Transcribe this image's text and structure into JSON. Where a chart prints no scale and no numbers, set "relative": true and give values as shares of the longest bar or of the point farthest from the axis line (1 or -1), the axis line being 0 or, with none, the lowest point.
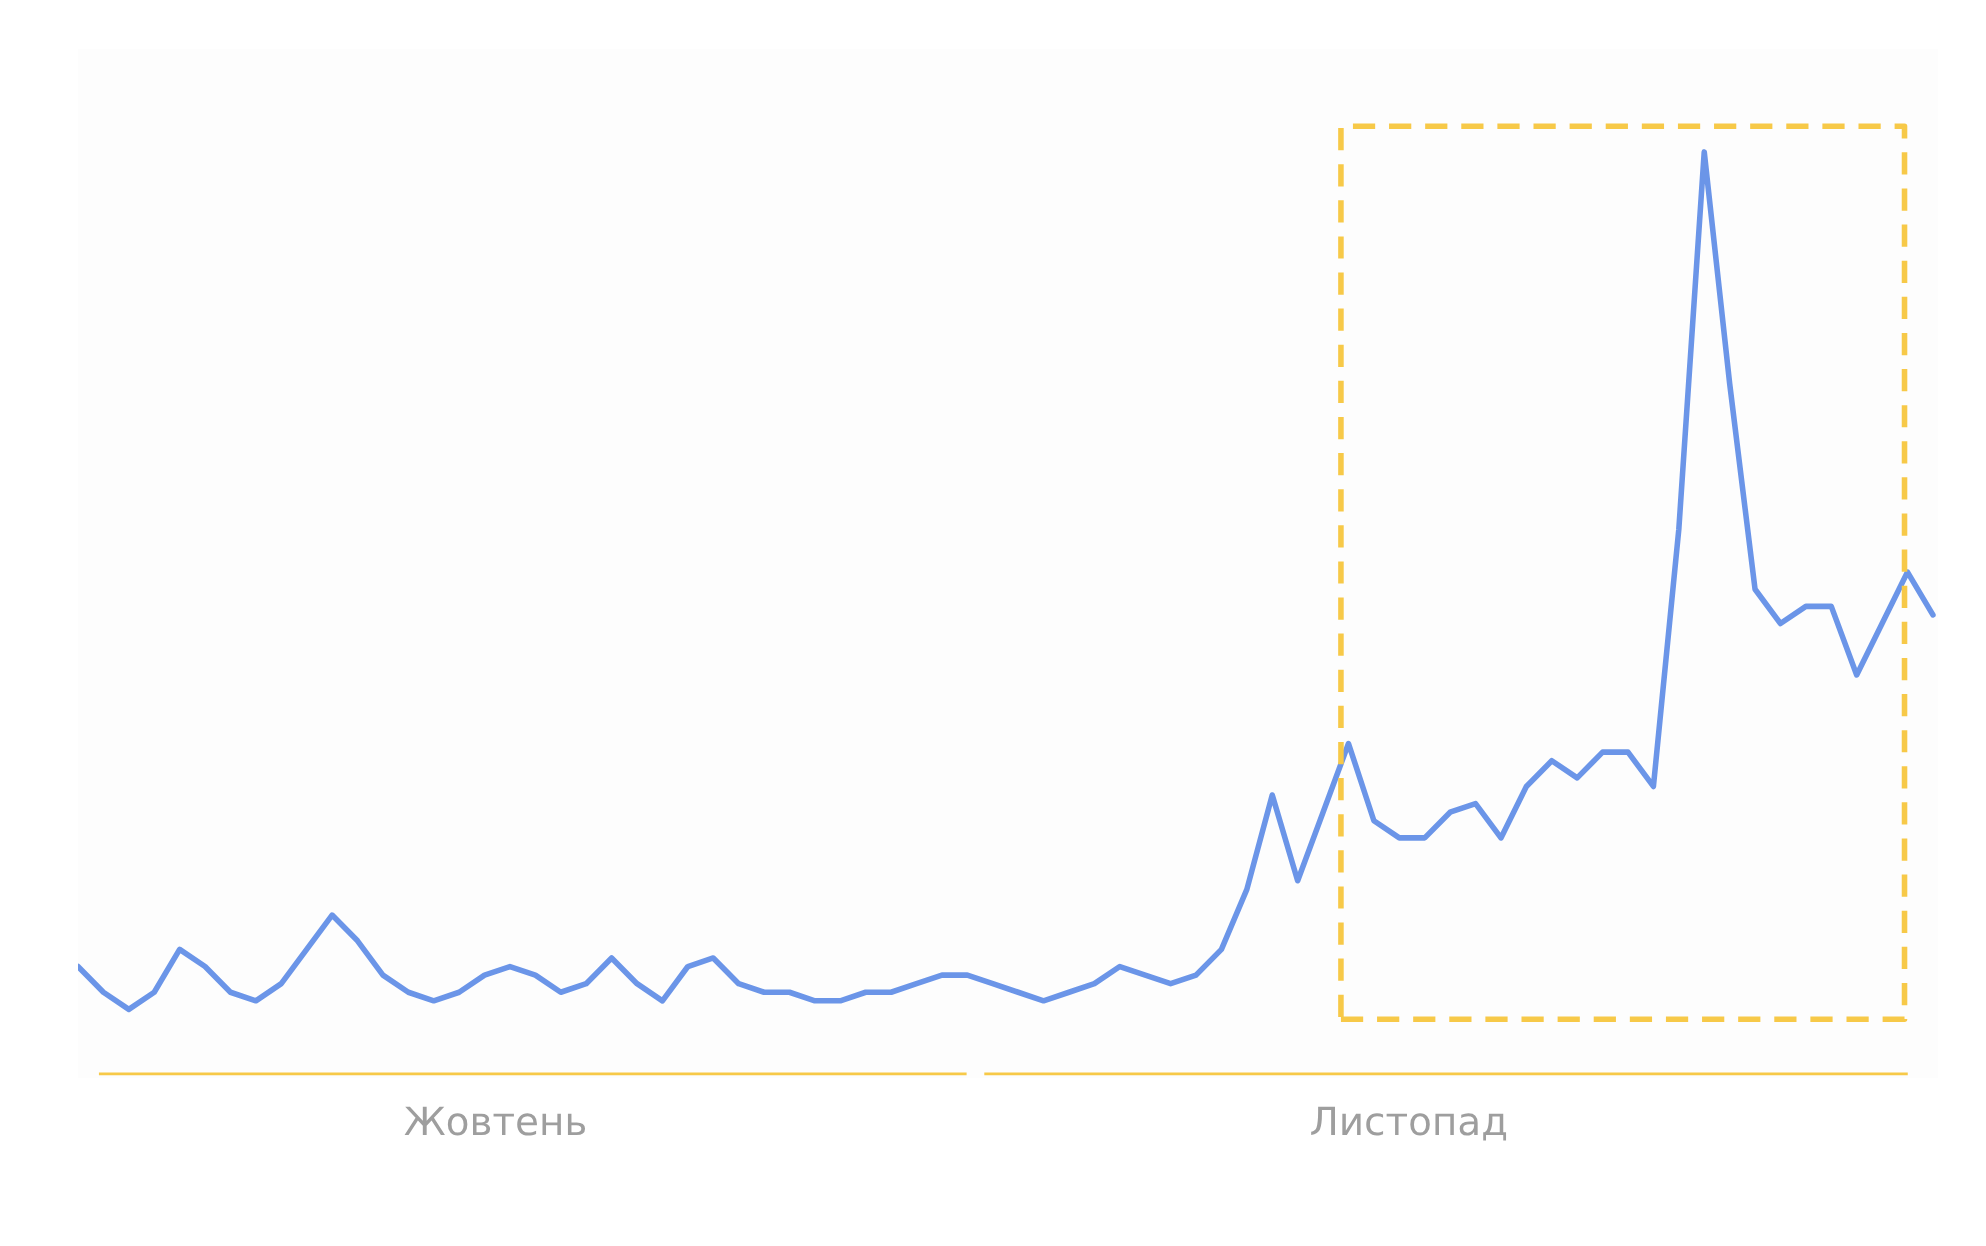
{
  "chart_data": {
    "type": "line",
    "relative": true,
    "categories": [
      null,
      null,
      null,
      null,
      null,
      null,
      null,
      null,
      null,
      null,
      null,
      null,
      null,
      null,
      null,
      null,
      null,
      null,
      null,
      null,
      null,
      null,
      null,
      null,
      null,
      null,
      null,
      null,
      null,
      null,
      null,
      null,
      null,
      null,
      null,
      null,
      null,
      null,
      null,
      null,
      null,
      null,
      null,
      null,
      null,
      null,
      null,
      null,
      null,
      null,
      null,
      null,
      null,
      null,
      null,
      null,
      null,
      null,
      null,
      null,
      null,
      null,
      null,
      null,
      null,
      null,
      null,
      null,
      null,
      null,
      null,
      null,
      null,
      null
    ],
    "series": [
      {
        "color": "#6b95e8",
        "values": [
          0.05,
          0.02,
          0.0,
          0.02,
          0.07,
          0.05,
          0.02,
          0.01,
          0.03,
          0.07,
          0.11,
          0.08,
          0.04,
          0.02,
          0.01,
          0.02,
          0.04,
          0.05,
          0.04,
          0.02,
          0.03,
          0.06,
          0.03,
          0.01,
          0.05,
          0.06,
          0.03,
          0.02,
          0.02,
          0.01,
          0.01,
          0.02,
          0.02,
          0.03,
          0.04,
          0.04,
          0.03,
          0.02,
          0.01,
          0.02,
          0.03,
          0.05,
          0.04,
          0.03,
          0.04,
          0.07,
          0.14,
          0.25,
          0.15,
          0.23,
          0.31,
          0.22,
          0.2,
          0.2,
          0.23,
          0.24,
          0.2,
          0.26,
          0.29,
          0.27,
          0.3,
          0.3,
          0.26,
          0.56,
          1.0,
          0.73,
          0.49,
          0.45,
          0.47,
          0.47,
          0.39,
          0.45,
          0.51,
          0.46
        ]
      }
    ],
    "annotations": [
      "Жовтень",
      "Листопад"
    ],
    "grid": false,
    "legend": false,
    "marker": "none",
    "line_style": "solid"
  }
}
